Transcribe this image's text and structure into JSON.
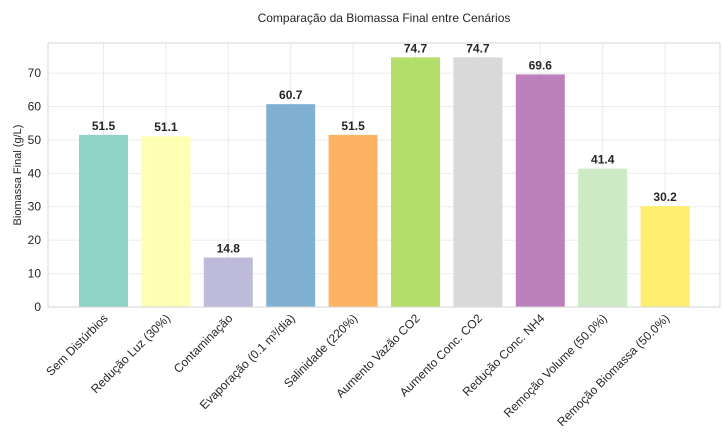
{
  "chart_data": {
    "type": "bar",
    "title": "Comparação da Biomassa Final entre Cenários",
    "xlabel": "",
    "ylabel": "Biomassa Final (g/L)",
    "ylim": [
      0,
      79
    ],
    "yticks": [
      0,
      10,
      20,
      30,
      40,
      50,
      60,
      70
    ],
    "grid": true,
    "categories": [
      "Sem Distúrbios",
      "Redução Luz (30%)",
      "Contaminação",
      "Evaporação (0.1 m³/dia)",
      "Salinidade (220%)",
      "Aumento Vazão CO2",
      "Aumento Conc. CO2",
      "Redução Conc. NH4",
      "Remoção Volume (50.0%)",
      "Remoção Biomassa (50.0%)"
    ],
    "values": [
      51.5,
      51.1,
      14.8,
      60.7,
      51.5,
      74.7,
      74.7,
      69.6,
      41.4,
      30.2
    ],
    "value_labels": [
      "51.5",
      "51.1",
      "14.8",
      "60.7",
      "51.5",
      "74.7",
      "74.7",
      "69.6",
      "41.4",
      "30.2"
    ],
    "colors": [
      "#8dd3c7",
      "#ffffb3",
      "#bebada",
      "#80b1d3",
      "#fdb462",
      "#b3de69",
      "#d9d9d9",
      "#bc80bd",
      "#ccebc5",
      "#ffed6f"
    ]
  }
}
